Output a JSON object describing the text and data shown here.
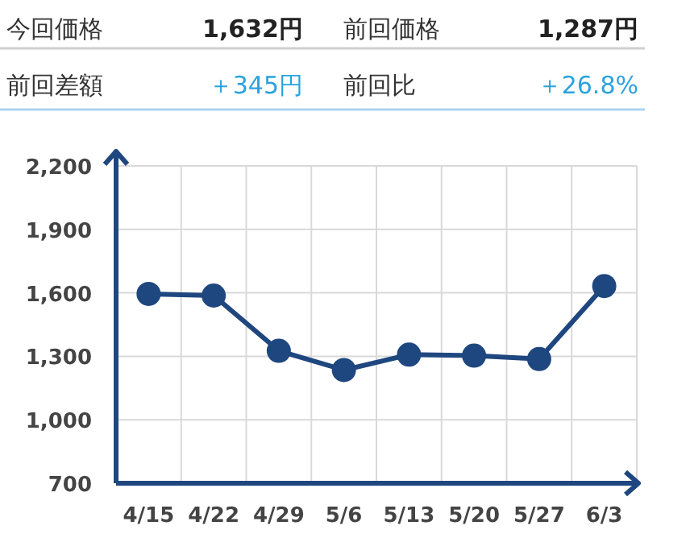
{
  "chart_data": {
    "type": "line",
    "annotations": [
      "今回価格",
      "1,632円",
      "前回価格",
      "1,287円",
      "前回差額",
      "＋345円",
      "前回比",
      "＋26.8%"
    ],
    "categories": [
      "4/15",
      "4/22",
      "4/29",
      "5/6",
      "5/13",
      "5/20",
      "5/27",
      "6/3"
    ],
    "series": [
      {
        "color": "#1f477f",
        "values": [
          1595,
          1587,
          1326,
          1235,
          1308,
          1303,
          1287,
          1632
        ]
      }
    ],
    "ylim": [
      700,
      2200
    ],
    "yticks": [
      {
        "value": 700,
        "label": "700"
      },
      {
        "value": 1000,
        "label": "1,000"
      },
      {
        "value": 1300,
        "label": "1,300"
      },
      {
        "value": 1600,
        "label": "1,600"
      },
      {
        "value": 1900,
        "label": "1,900"
      },
      {
        "value": 2200,
        "label": "2,200"
      }
    ],
    "grid": true,
    "marker": "circle"
  }
}
